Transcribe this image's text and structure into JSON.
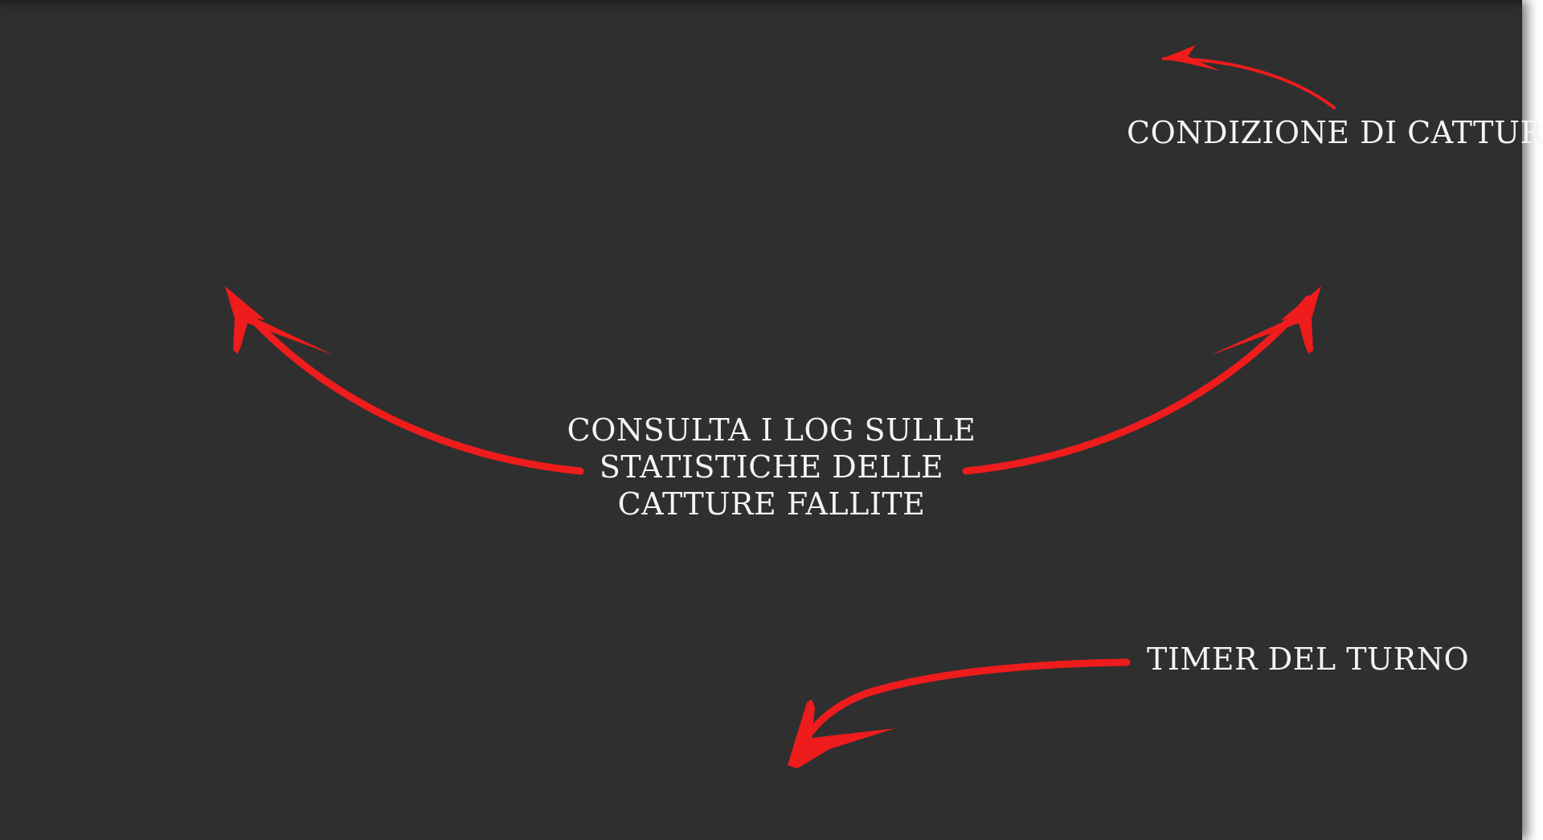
{
  "overlay": {
    "background_color": "#2f2f2f",
    "text_color": "#f4f4f4",
    "arrow_color": "#ee1c1c"
  },
  "annotations": {
    "capture_condition": "CONDIZIONE DI CATTURA",
    "logs_line_1": "CONSULTA I LOG SULLE",
    "logs_line_2": "STATISTICHE DELLE",
    "logs_line_3": "CATTURE FALLITE",
    "turn_timer": "TIMER DEL TURNO"
  },
  "icons": [
    "arrow-up-left-icon",
    "arrow-up-right-icon",
    "arrow-capture-icon",
    "arrow-timer-icon"
  ]
}
